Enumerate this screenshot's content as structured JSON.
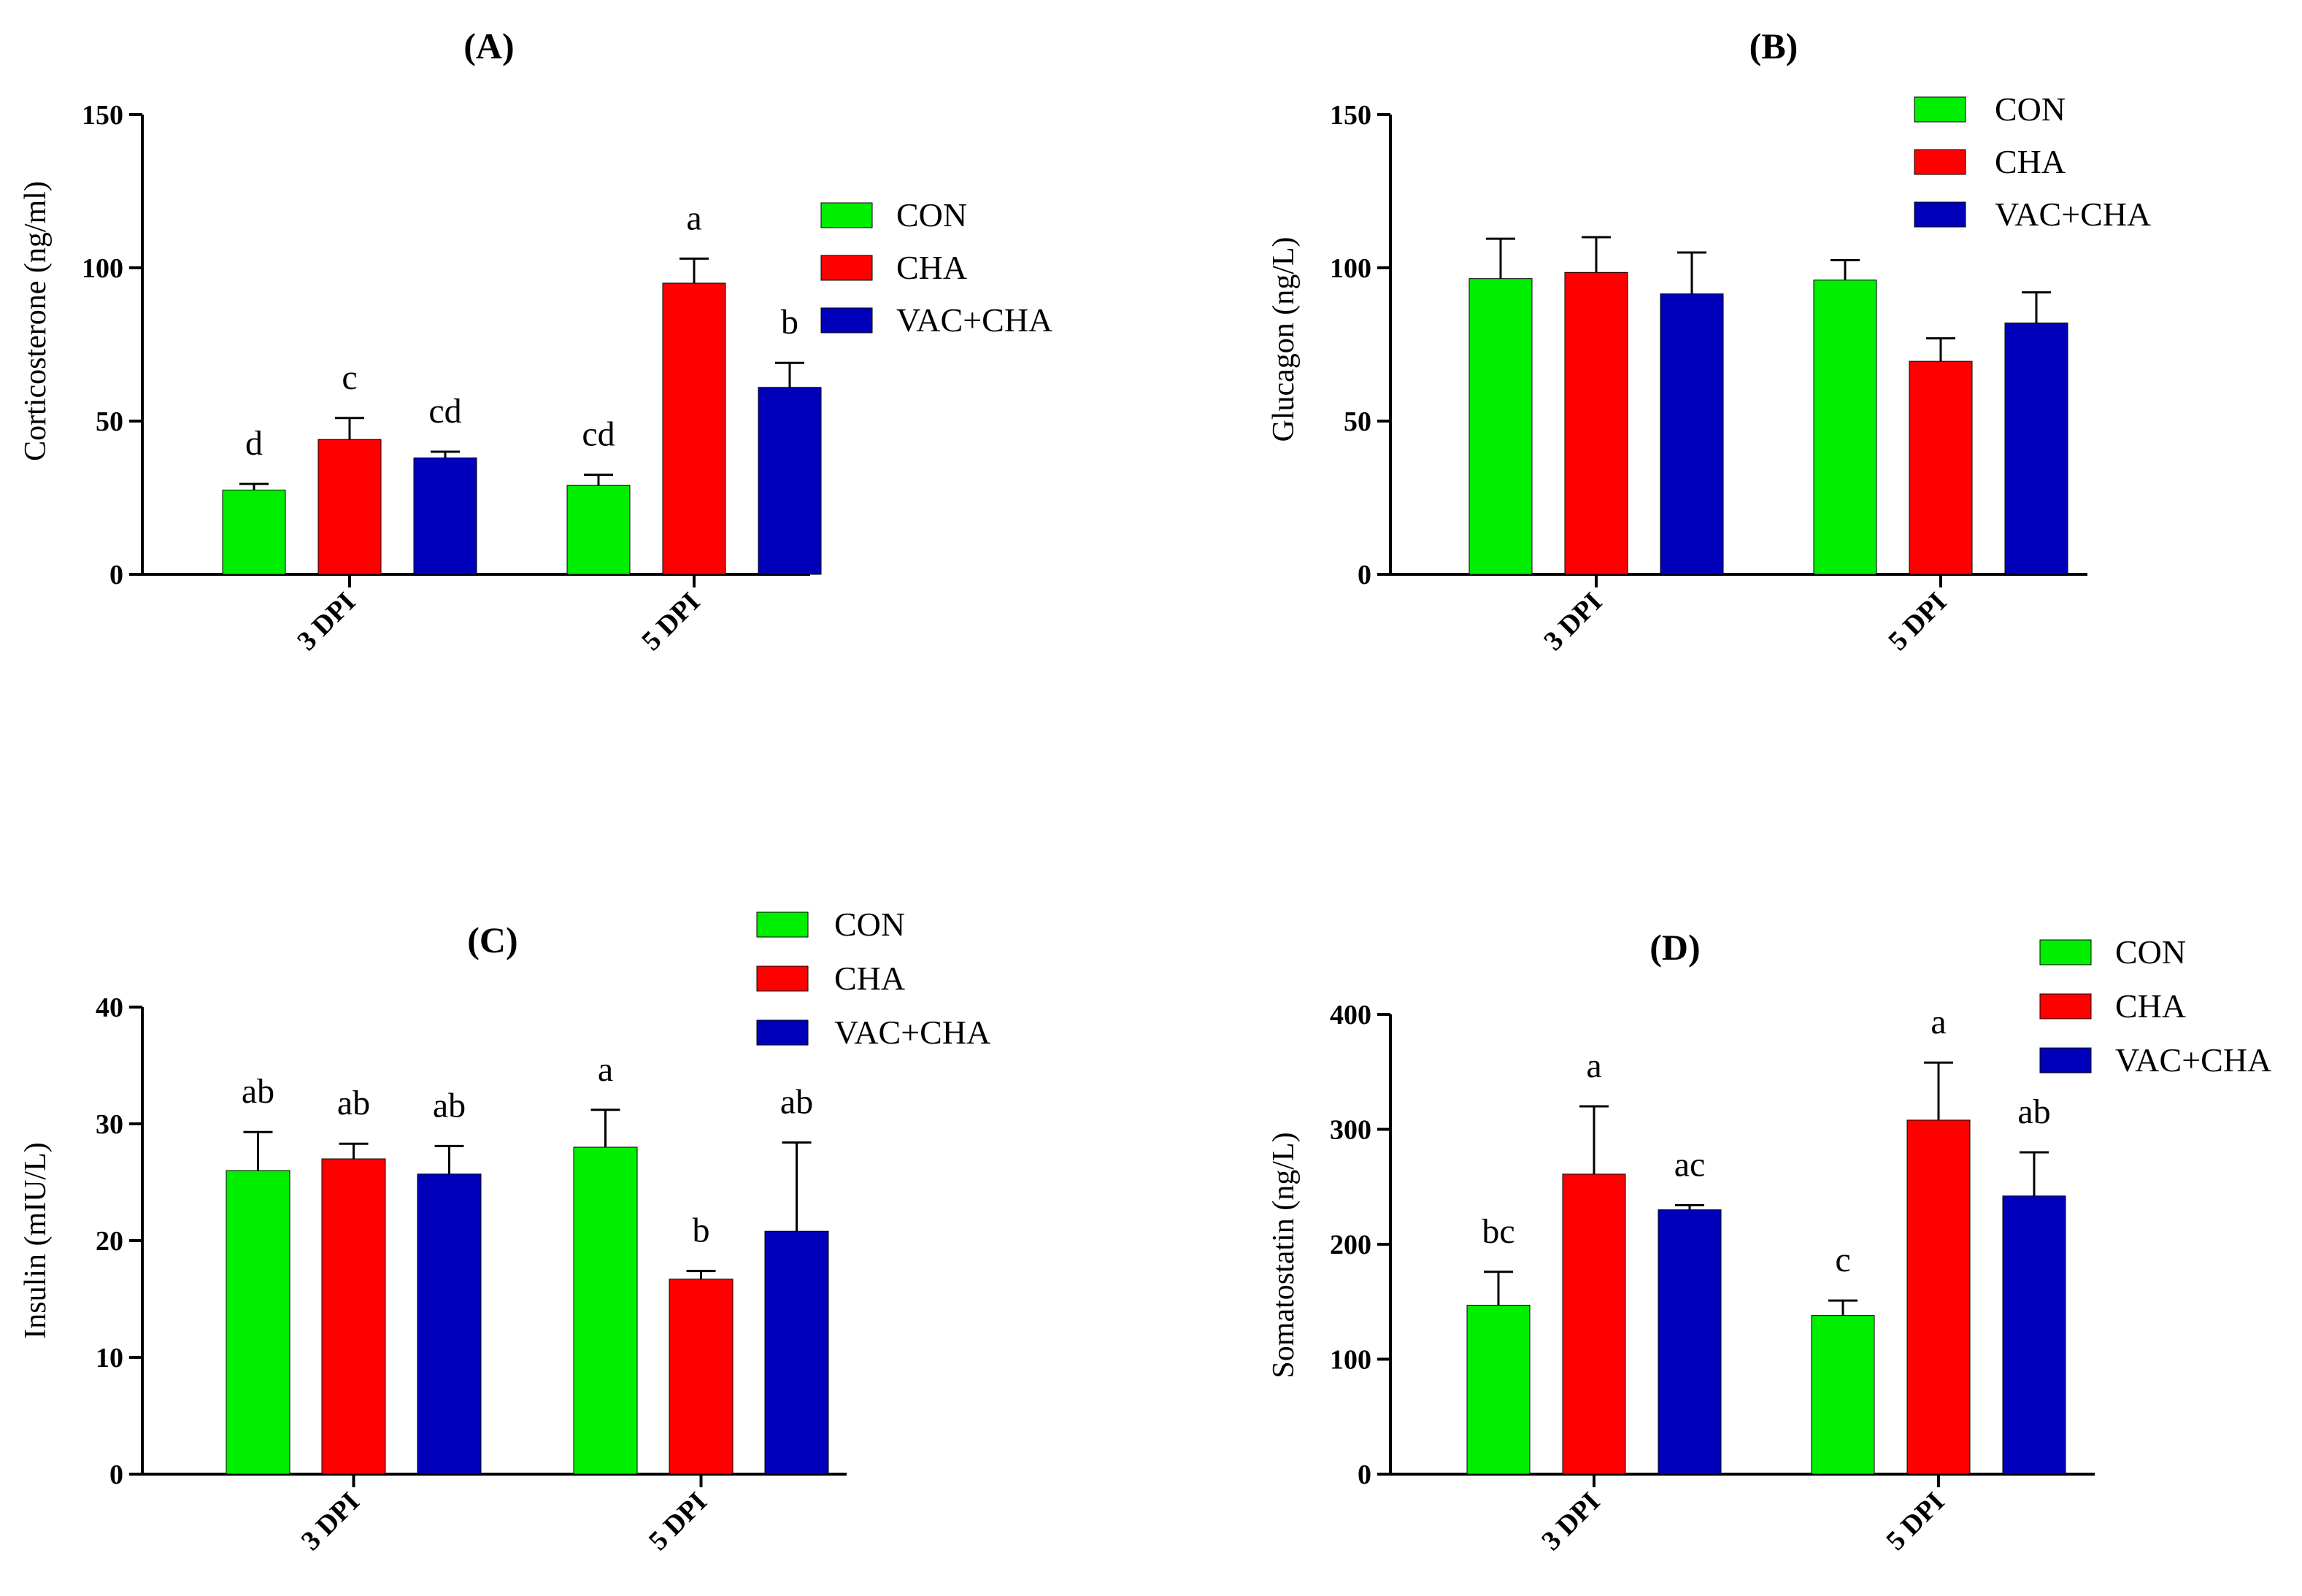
{
  "colors": {
    "CON": "#00ee00",
    "CHA": "#ff0000",
    "VAC+CHA": "#0000bb"
  },
  "chart_data": [
    {
      "type": "bar",
      "title": "(A)",
      "xlabel": "",
      "ylabel": "Corticosterone (ng/ml)",
      "ylim": [
        0,
        150
      ],
      "yticks": [
        "0",
        "50",
        "100",
        "150"
      ],
      "categories": [
        "3 DPI",
        "5 DPI"
      ],
      "legend": {
        "position": "right",
        "entries": [
          "CON",
          "CHA",
          "VAC+CHA"
        ]
      },
      "series": [
        {
          "name": "CON",
          "values": [
            27.5,
            29
          ],
          "errors": [
            2,
            3.5
          ],
          "labels": [
            "d",
            "cd"
          ]
        },
        {
          "name": "CHA",
          "values": [
            44,
            95
          ],
          "errors": [
            7,
            8
          ],
          "labels": [
            "c",
            "a"
          ]
        },
        {
          "name": "VAC+CHA",
          "values": [
            38,
            61
          ],
          "errors": [
            2,
            8
          ],
          "labels": [
            "cd",
            "b"
          ]
        }
      ]
    },
    {
      "type": "bar",
      "title": "(B)",
      "xlabel": "",
      "ylabel": "Glucagon (ng/L)",
      "ylim": [
        0,
        150
      ],
      "yticks": [
        "0",
        "50",
        "100",
        "150"
      ],
      "categories": [
        "3 DPI",
        "5 DPI"
      ],
      "legend": {
        "position": "top-right",
        "entries": [
          "CON",
          "CHA",
          "VAC+CHA"
        ]
      },
      "series": [
        {
          "name": "CON",
          "values": [
            96.5,
            96
          ],
          "errors": [
            13,
            6.5
          ],
          "labels": [
            "",
            ""
          ]
        },
        {
          "name": "CHA",
          "values": [
            98.5,
            69.5
          ],
          "errors": [
            11.5,
            7.5
          ],
          "labels": [
            "",
            ""
          ]
        },
        {
          "name": "VAC+CHA",
          "values": [
            91.5,
            82
          ],
          "errors": [
            13.5,
            10
          ],
          "labels": [
            "",
            ""
          ]
        }
      ]
    },
    {
      "type": "bar",
      "title": "(C)",
      "xlabel": "",
      "ylabel": "Insulin (mIU/L)",
      "ylim": [
        0,
        40
      ],
      "yticks": [
        "0",
        "10",
        "20",
        "30",
        "40"
      ],
      "categories": [
        "3 DPI",
        "5 DPI"
      ],
      "legend": {
        "position": "top-right",
        "entries": [
          "CON",
          "CHA",
          "VAC+CHA"
        ]
      },
      "series": [
        {
          "name": "CON",
          "values": [
            26,
            28
          ],
          "errors": [
            3.3,
            3.2
          ],
          "labels": [
            "ab",
            "a"
          ]
        },
        {
          "name": "CHA",
          "values": [
            27,
            16.7
          ],
          "errors": [
            1.3,
            0.7
          ],
          "labels": [
            "ab",
            "b"
          ]
        },
        {
          "name": "VAC+CHA",
          "values": [
            25.7,
            20.8
          ],
          "errors": [
            2.4,
            7.6
          ],
          "labels": [
            "ab",
            "ab"
          ]
        }
      ]
    },
    {
      "type": "bar",
      "title": "(D)",
      "xlabel": "",
      "ylabel": "Somatostatin (ng/L)",
      "ylim": [
        0,
        400
      ],
      "yticks": [
        "0",
        "100",
        "200",
        "300",
        "400"
      ],
      "categories": [
        "3 DPI",
        "5 DPI"
      ],
      "legend": {
        "position": "top-right",
        "entries": [
          "CON",
          "CHA",
          "VAC+CHA"
        ]
      },
      "series": [
        {
          "name": "CON",
          "values": [
            147,
            138
          ],
          "errors": [
            29,
            13
          ],
          "labels": [
            "bc",
            "c"
          ]
        },
        {
          "name": "CHA",
          "values": [
            261,
            308
          ],
          "errors": [
            59,
            50
          ],
          "labels": [
            "a",
            "a"
          ]
        },
        {
          "name": "VAC+CHA",
          "values": [
            230,
            242
          ],
          "errors": [
            4,
            38
          ],
          "labels": [
            "ac",
            "ab"
          ]
        }
      ]
    }
  ]
}
